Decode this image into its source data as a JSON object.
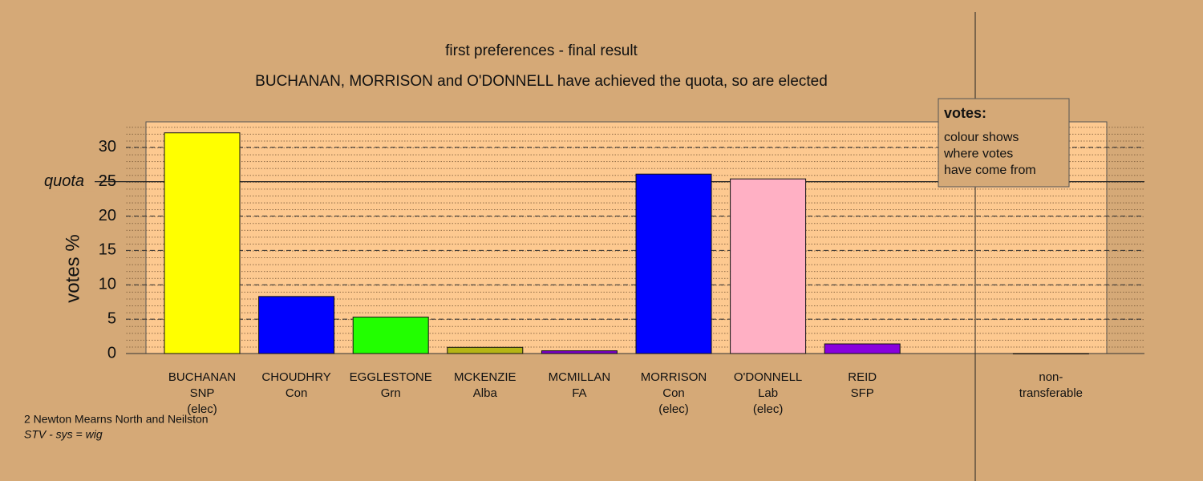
{
  "chart_data": {
    "type": "bar",
    "title": "first preferences - final result",
    "subtitle": "BUCHANAN, MORRISON and O'DONNELL have achieved the quota, so are elected",
    "y_label": "votes %",
    "categories": [
      [
        "BUCHANAN",
        "SNP",
        "(elec)"
      ],
      [
        "CHOUDHRY",
        "Con"
      ],
      [
        "EGGLESTONE",
        "Grn"
      ],
      [
        "MCKENZIE",
        "Alba"
      ],
      [
        "MCMILLAN",
        "FA"
      ],
      [
        "MORRISON",
        "Con",
        "(elec)"
      ],
      [
        "O'DONNELL",
        "Lab",
        "(elec)"
      ],
      [
        "REID",
        "SFP"
      ],
      null,
      [
        "non-",
        "transferable"
      ]
    ],
    "values": [
      32.1,
      8.3,
      5.3,
      0.9,
      0.4,
      26.1,
      25.4,
      1.4,
      null,
      0
    ],
    "colors": [
      "#ffff00",
      "#0000ff",
      "#22ff00",
      "#b5b515",
      "#7a00c8",
      "#0000ff",
      "#ffb0c4",
      "#8800dd",
      null,
      "#888888"
    ],
    "ylim": [
      0,
      33.7
    ],
    "yticks": [
      0,
      5,
      10,
      15,
      20,
      25,
      30
    ],
    "quota": {
      "value": 25,
      "label": "quota"
    },
    "grid": true,
    "legend": {
      "title": "votes:",
      "lines": [
        "colour shows",
        "where votes",
        "have come from"
      ]
    },
    "footer": [
      "2 Newton Mearns North and Neilston",
      "STV - sys = wig"
    ]
  }
}
